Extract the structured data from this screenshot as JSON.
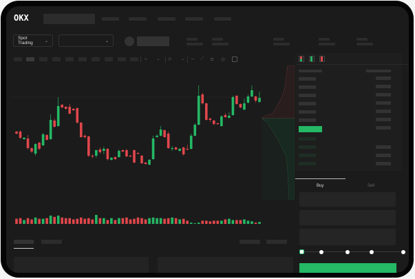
{
  "header": {
    "logo": "OKX"
  },
  "toolbar": {
    "market_selector": "Spot Trading"
  },
  "chart_icons": [
    "candle-interval-icon",
    "chevron-down-icon",
    "indicator-icon",
    "chevron-down-icon",
    "line-tool-icon",
    "ruler-icon",
    "camera-icon",
    "settings-icon",
    "fullscreen-icon"
  ],
  "orderbook": {
    "view_icons": [
      "orderbook-both-icon",
      "orderbook-bids-icon",
      "orderbook-asks-icon"
    ]
  },
  "trade": {
    "tabs": [
      "Buy",
      "Sell"
    ],
    "active_tab": "Buy",
    "slider_percent": 0
  },
  "colors": {
    "up": "#25b865",
    "down": "#e0474c",
    "background": "#1b1b1b"
  },
  "chart_data": {
    "type": "candlestick",
    "ohlc": [
      [
        58,
        59,
        54,
        55
      ],
      [
        58,
        60,
        47,
        49
      ],
      [
        47,
        50,
        46,
        49
      ],
      [
        48,
        53,
        32,
        34
      ],
      [
        34,
        35,
        27,
        29
      ],
      [
        26,
        41,
        23,
        40
      ],
      [
        42,
        43,
        31,
        33
      ],
      [
        38,
        56,
        37,
        54
      ],
      [
        53,
        54,
        45,
        46
      ],
      [
        47,
        83,
        46,
        75
      ],
      [
        74,
        77,
        64,
        65
      ],
      [
        66,
        108,
        65,
        95
      ],
      [
        97,
        98,
        92,
        93
      ],
      [
        94,
        95,
        90,
        91
      ],
      [
        94,
        98,
        83,
        84
      ],
      [
        91,
        92,
        88,
        89
      ],
      [
        92,
        93,
        70,
        71
      ],
      [
        71,
        72,
        49,
        50
      ],
      [
        52,
        54,
        48,
        50
      ],
      [
        51,
        52,
        21,
        23
      ],
      [
        23,
        25,
        19,
        22
      ],
      [
        23,
        32,
        20,
        31
      ],
      [
        32,
        35,
        26,
        28
      ],
      [
        30,
        36,
        25,
        33
      ],
      [
        33,
        34,
        16,
        18
      ],
      [
        17,
        21,
        16,
        20
      ],
      [
        21,
        22,
        17,
        18
      ],
      [
        21,
        32,
        20,
        30
      ],
      [
        31,
        32,
        28,
        29
      ],
      [
        31,
        33,
        21,
        22
      ],
      [
        23,
        24,
        21,
        22
      ],
      [
        31,
        32,
        12,
        13
      ],
      [
        27,
        28,
        25,
        26
      ],
      [
        23,
        24,
        11,
        12
      ],
      [
        13,
        14,
        10,
        11
      ],
      [
        10,
        18,
        9,
        17
      ],
      [
        18,
        52,
        17,
        48
      ],
      [
        50,
        54,
        49,
        52
      ],
      [
        52,
        66,
        51,
        61
      ],
      [
        60,
        61,
        49,
        50
      ],
      [
        55,
        58,
        33,
        34
      ],
      [
        33,
        37,
        30,
        34
      ],
      [
        35,
        36,
        31,
        32
      ],
      [
        30,
        34,
        29,
        33
      ],
      [
        35,
        36,
        23,
        25
      ],
      [
        33,
        39,
        31,
        32
      ],
      [
        33,
        55,
        32,
        52
      ],
      [
        52,
        70,
        51,
        68
      ],
      [
        68,
        125,
        67,
        110
      ],
      [
        112,
        114,
        97,
        99
      ],
      [
        99,
        100,
        74,
        75
      ],
      [
        77,
        78,
        72,
        75
      ],
      [
        74,
        75,
        67,
        69
      ],
      [
        70,
        71,
        68,
        69
      ],
      [
        66,
        82,
        65,
        80
      ],
      [
        82,
        85,
        78,
        79
      ],
      [
        78,
        86,
        77,
        81
      ],
      [
        82,
        110,
        81,
        108
      ],
      [
        110,
        111,
        97,
        98
      ],
      [
        98,
        99,
        92,
        93
      ],
      [
        90,
        106,
        89,
        99
      ],
      [
        100,
        112,
        99,
        109
      ],
      [
        109,
        125,
        108,
        118
      ],
      [
        109,
        110,
        100,
        103
      ],
      [
        101,
        116,
        100,
        107
      ]
    ],
    "volume": [
      8,
      9,
      6,
      9,
      7,
      10,
      8,
      8,
      9,
      13,
      11,
      13,
      10,
      9,
      9,
      7,
      8,
      10,
      8,
      9,
      7,
      14,
      9,
      9,
      6,
      9,
      6,
      9,
      9,
      10,
      7,
      8,
      10,
      9,
      7,
      9,
      10,
      9,
      9,
      8,
      9,
      10,
      9,
      7,
      8,
      5,
      2,
      1,
      2,
      5,
      5,
      4,
      5,
      5,
      5,
      7,
      8,
      6,
      6,
      6,
      7,
      5,
      4,
      2,
      3
    ],
    "ylim": [
      0,
      145
    ]
  }
}
